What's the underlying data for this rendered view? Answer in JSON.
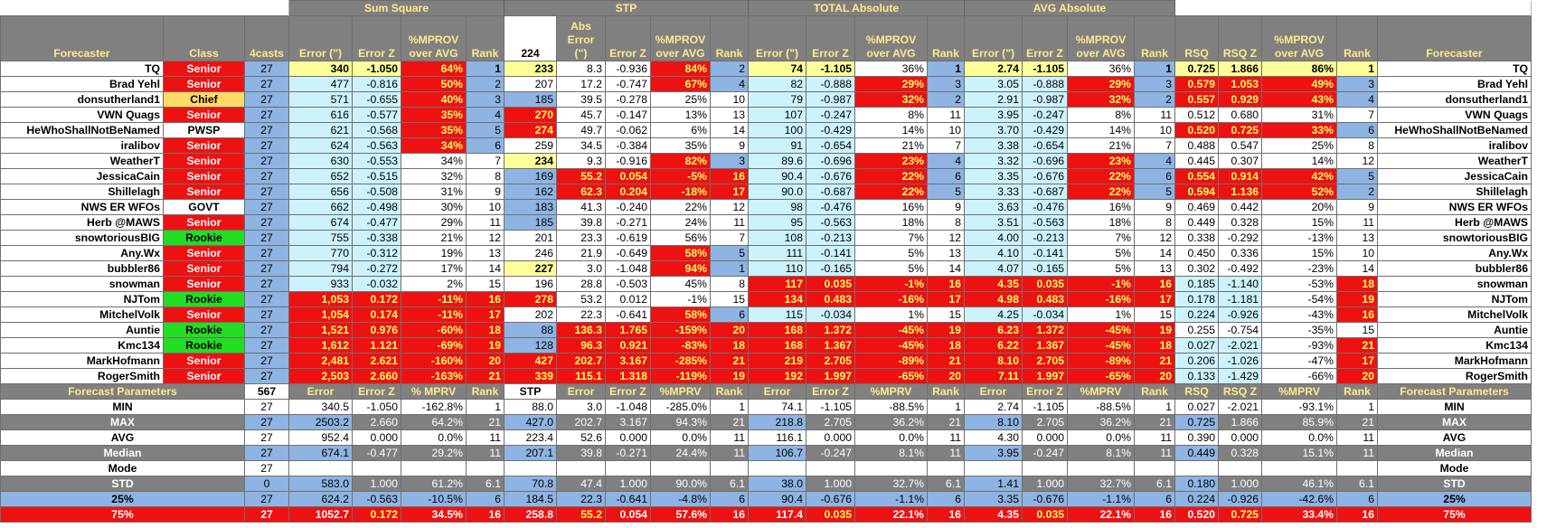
{
  "groups": {
    "sum_square": "Sum Square",
    "stp": "STP",
    "total_abs": "TOTAL Absolute",
    "avg_abs": "AVG Absolute"
  },
  "headers": {
    "forecaster": "Forecaster",
    "class": "Class",
    "casts": "4casts",
    "error_ss": "Error (\")",
    "errz_ss": "Error Z",
    "mprov_ss": "%MPROV over AVG",
    "rank_ss": "Rank",
    "stp_count": "224",
    "abs_error": "Abs Error (\")",
    "errz_stp": "Error Z",
    "mprov_stp": "%MPROV over AVG",
    "rank_stp": "Rank",
    "error_tot": "Error (\")",
    "errz_tot": "Error Z",
    "mprov_tot": "%MPROV over AVG",
    "rank_tot": "Rank",
    "error_avg": "Error (\")",
    "errz_avg": "Error Z",
    "mprov_avg": "%MPROV over AVG",
    "rank_avg": "Rank",
    "rsq": "RSQ",
    "rsqz": "RSQ Z",
    "mprov_rsq": "%MPROV over AVG",
    "rank_rsq": "Rank",
    "forecaster_right": "Forecaster"
  },
  "rows": [
    {
      "name": "TQ",
      "cls": "Senior",
      "n": "27",
      "ss": [
        "340",
        "-1.050",
        "64%",
        "1"
      ],
      "stp": [
        "233",
        "8.3",
        "-0.936",
        "84%",
        "2"
      ],
      "tot": [
        "74",
        "-1.105",
        "36%",
        "1"
      ],
      "avg": [
        "2.74",
        "-1.105",
        "36%",
        "1"
      ],
      "rsq": [
        "0.725",
        "1.866",
        "86%",
        "1"
      ]
    },
    {
      "name": "Brad Yehl",
      "cls": "Senior",
      "n": "27",
      "ss": [
        "477",
        "-0.816",
        "50%",
        "2"
      ],
      "stp": [
        "207",
        "17.2",
        "-0.747",
        "67%",
        "4"
      ],
      "tot": [
        "82",
        "-0.888",
        "29%",
        "3"
      ],
      "avg": [
        "3.05",
        "-0.888",
        "29%",
        "3"
      ],
      "rsq": [
        "0.579",
        "1.053",
        "49%",
        "3"
      ]
    },
    {
      "name": "donsutherland1",
      "cls": "Chief",
      "n": "27",
      "ss": [
        "571",
        "-0.655",
        "40%",
        "3"
      ],
      "stp": [
        "185",
        "39.5",
        "-0.278",
        "25%",
        "10"
      ],
      "tot": [
        "79",
        "-0.987",
        "32%",
        "2"
      ],
      "avg": [
        "2.91",
        "-0.987",
        "32%",
        "2"
      ],
      "rsq": [
        "0.557",
        "0.929",
        "43%",
        "4"
      ]
    },
    {
      "name": "VWN Quags",
      "cls": "Senior",
      "n": "27",
      "ss": [
        "616",
        "-0.577",
        "35%",
        "4"
      ],
      "stp": [
        "270",
        "45.7",
        "-0.147",
        "13%",
        "13"
      ],
      "tot": [
        "107",
        "-0.247",
        "8%",
        "11"
      ],
      "avg": [
        "3.95",
        "-0.247",
        "8%",
        "11"
      ],
      "rsq": [
        "0.512",
        "0.680",
        "31%",
        "7"
      ]
    },
    {
      "name": "HeWhoShallNotBeNamed",
      "cls": "PWSP",
      "n": "27",
      "ss": [
        "621",
        "-0.568",
        "35%",
        "5"
      ],
      "stp": [
        "274",
        "49.7",
        "-0.062",
        "6%",
        "14"
      ],
      "tot": [
        "100",
        "-0.429",
        "14%",
        "10"
      ],
      "avg": [
        "3.70",
        "-0.429",
        "14%",
        "10"
      ],
      "rsq": [
        "0.520",
        "0.725",
        "33%",
        "6"
      ]
    },
    {
      "name": "iralibov",
      "cls": "Senior",
      "n": "27",
      "ss": [
        "624",
        "-0.563",
        "34%",
        "6"
      ],
      "stp": [
        "259",
        "34.5",
        "-0.384",
        "35%",
        "9"
      ],
      "tot": [
        "91",
        "-0.654",
        "21%",
        "7"
      ],
      "avg": [
        "3.38",
        "-0.654",
        "21%",
        "7"
      ],
      "rsq": [
        "0.488",
        "0.547",
        "25%",
        "8"
      ]
    },
    {
      "name": "WeatherT",
      "cls": "Senior",
      "n": "27",
      "ss": [
        "630",
        "-0.553",
        "34%",
        "7"
      ],
      "stp": [
        "234",
        "9.3",
        "-0.916",
        "82%",
        "3"
      ],
      "tot": [
        "89.6",
        "-0.696",
        "23%",
        "4"
      ],
      "avg": [
        "3.32",
        "-0.696",
        "23%",
        "4"
      ],
      "rsq": [
        "0.445",
        "0.307",
        "14%",
        "12"
      ]
    },
    {
      "name": "JessicaCain",
      "cls": "Senior",
      "n": "27",
      "ss": [
        "652",
        "-0.515",
        "32%",
        "8"
      ],
      "stp": [
        "169",
        "55.2",
        "0.054",
        "-5%",
        "16"
      ],
      "tot": [
        "90.4",
        "-0.676",
        "22%",
        "6"
      ],
      "avg": [
        "3.35",
        "-0.676",
        "22%",
        "6"
      ],
      "rsq": [
        "0.554",
        "0.914",
        "42%",
        "5"
      ]
    },
    {
      "name": "Shillelagh",
      "cls": "Senior",
      "n": "27",
      "ss": [
        "656",
        "-0.508",
        "31%",
        "9"
      ],
      "stp": [
        "162",
        "62.3",
        "0.204",
        "-18%",
        "17"
      ],
      "tot": [
        "90.0",
        "-0.687",
        "22%",
        "5"
      ],
      "avg": [
        "3.33",
        "-0.687",
        "22%",
        "5"
      ],
      "rsq": [
        "0.594",
        "1.136",
        "52%",
        "2"
      ]
    },
    {
      "name": "NWS ER WFOs",
      "cls": "GOVT",
      "n": "27",
      "ss": [
        "662",
        "-0.498",
        "30%",
        "10"
      ],
      "stp": [
        "183",
        "41.3",
        "-0.240",
        "22%",
        "12"
      ],
      "tot": [
        "98",
        "-0.476",
        "16%",
        "9"
      ],
      "avg": [
        "3.63",
        "-0.476",
        "16%",
        "9"
      ],
      "rsq": [
        "0.469",
        "0.442",
        "20%",
        "9"
      ]
    },
    {
      "name": "Herb @MAWS",
      "cls": "Senior",
      "n": "27",
      "ss": [
        "674",
        "-0.477",
        "29%",
        "11"
      ],
      "stp": [
        "185",
        "39.8",
        "-0.271",
        "24%",
        "11"
      ],
      "tot": [
        "95",
        "-0.563",
        "18%",
        "8"
      ],
      "avg": [
        "3.51",
        "-0.563",
        "18%",
        "8"
      ],
      "rsq": [
        "0.449",
        "0.328",
        "15%",
        "11"
      ]
    },
    {
      "name": "snowtoriousBIG",
      "cls": "Rookie",
      "n": "27",
      "ss": [
        "755",
        "-0.338",
        "21%",
        "12"
      ],
      "stp": [
        "201",
        "23.3",
        "-0.619",
        "56%",
        "7"
      ],
      "tot": [
        "108",
        "-0.213",
        "7%",
        "12"
      ],
      "avg": [
        "4.00",
        "-0.213",
        "7%",
        "12"
      ],
      "rsq": [
        "0.338",
        "-0.292",
        "-13%",
        "13"
      ]
    },
    {
      "name": "Any.Wx",
      "cls": "Senior",
      "n": "27",
      "ss": [
        "770",
        "-0.312",
        "19%",
        "13"
      ],
      "stp": [
        "246",
        "21.9",
        "-0.649",
        "58%",
        "5"
      ],
      "tot": [
        "111",
        "-0.141",
        "5%",
        "13"
      ],
      "avg": [
        "4.10",
        "-0.141",
        "5%",
        "14"
      ],
      "rsq": [
        "0.450",
        "0.336",
        "15%",
        "10"
      ]
    },
    {
      "name": "bubbler86",
      "cls": "Senior",
      "n": "27",
      "ss": [
        "794",
        "-0.272",
        "17%",
        "14"
      ],
      "stp": [
        "227",
        "3.0",
        "-1.048",
        "94%",
        "1"
      ],
      "tot": [
        "110",
        "-0.165",
        "5%",
        "14"
      ],
      "avg": [
        "4.07",
        "-0.165",
        "5%",
        "13"
      ],
      "rsq": [
        "0.302",
        "-0.492",
        "-23%",
        "14"
      ]
    },
    {
      "name": "snowman",
      "cls": "Senior",
      "n": "27",
      "ss": [
        "933",
        "-0.032",
        "2%",
        "15"
      ],
      "stp": [
        "196",
        "28.8",
        "-0.503",
        "45%",
        "8"
      ],
      "tot": [
        "117",
        "0.035",
        "-1%",
        "16"
      ],
      "avg": [
        "4.35",
        "0.035",
        "-1%",
        "16"
      ],
      "rsq": [
        "0.185",
        "-1.140",
        "-53%",
        "18"
      ]
    },
    {
      "name": "NJTom",
      "cls": "Rookie",
      "n": "27",
      "ss": [
        "1,053",
        "0.172",
        "-11%",
        "16"
      ],
      "stp": [
        "278",
        "53.2",
        "0.012",
        "-1%",
        "15"
      ],
      "tot": [
        "134",
        "0.483",
        "-16%",
        "17"
      ],
      "avg": [
        "4.98",
        "0.483",
        "-16%",
        "17"
      ],
      "rsq": [
        "0.178",
        "-1.181",
        "-54%",
        "19"
      ]
    },
    {
      "name": "MitchelVolk",
      "cls": "Senior",
      "n": "27",
      "ss": [
        "1,054",
        "0.174",
        "-11%",
        "17"
      ],
      "stp": [
        "202",
        "22.3",
        "-0.641",
        "58%",
        "6"
      ],
      "tot": [
        "115",
        "-0.034",
        "1%",
        "15"
      ],
      "avg": [
        "4.25",
        "-0.034",
        "1%",
        "15"
      ],
      "rsq": [
        "0.224",
        "-0.926",
        "-43%",
        "16"
      ]
    },
    {
      "name": "Auntie",
      "cls": "Rookie",
      "n": "27",
      "ss": [
        "1,521",
        "0.976",
        "-60%",
        "18"
      ],
      "stp": [
        "88",
        "136.3",
        "1.765",
        "-159%",
        "20"
      ],
      "tot": [
        "168",
        "1.372",
        "-45%",
        "19"
      ],
      "avg": [
        "6.23",
        "1.372",
        "-45%",
        "19"
      ],
      "rsq": [
        "0.255",
        "-0.754",
        "-35%",
        "15"
      ]
    },
    {
      "name": "Kmc134",
      "cls": "Rookie",
      "n": "27",
      "ss": [
        "1,612",
        "1.121",
        "-69%",
        "19"
      ],
      "stp": [
        "128",
        "96.3",
        "0.921",
        "-83%",
        "18"
      ],
      "tot": [
        "168",
        "1.367",
        "-45%",
        "18"
      ],
      "avg": [
        "6.22",
        "1.367",
        "-45%",
        "18"
      ],
      "rsq": [
        "0.027",
        "-2.021",
        "-93%",
        "21"
      ]
    },
    {
      "name": "MarkHofmann",
      "cls": "Senior",
      "n": "27",
      "ss": [
        "2,481",
        "2.621",
        "-160%",
        "20"
      ],
      "stp": [
        "427",
        "202.7",
        "3.167",
        "-285%",
        "21"
      ],
      "tot": [
        "219",
        "2.705",
        "-89%",
        "21"
      ],
      "avg": [
        "8.10",
        "2.705",
        "-89%",
        "21"
      ],
      "rsq": [
        "0.206",
        "-1.026",
        "-47%",
        "17"
      ]
    },
    {
      "name": "RogerSmith",
      "cls": "Senior",
      "n": "27",
      "ss": [
        "2,503",
        "2.660",
        "-163%",
        "21"
      ],
      "stp": [
        "339",
        "115.1",
        "1.318",
        "-119%",
        "19"
      ],
      "tot": [
        "192",
        "1.997",
        "-65%",
        "20"
      ],
      "avg": [
        "7.11",
        "1.997",
        "-65%",
        "20"
      ],
      "rsq": [
        "0.133",
        "-1.429",
        "-66%",
        "20"
      ]
    }
  ],
  "params_header": {
    "label": "Forecast Parameters",
    "n": "567",
    "c": [
      "Error",
      "Error Z",
      "% MPRV",
      "Rank",
      "STP",
      "Error",
      "Error Z",
      "%MPRV",
      "Rank",
      "Error",
      "Error Z",
      "%MPRV",
      "Rank",
      "Error",
      "Error Z",
      "%MPRV",
      "Rank",
      "RSQ",
      "RSQ Z",
      "%MPRV",
      "Rank"
    ],
    "right": "Forecast Parameters"
  },
  "params": [
    {
      "label": "MIN",
      "n": "27",
      "c": [
        "340.5",
        "-1.050",
        "-162.8%",
        "1",
        "88.0",
        "3.0",
        "-1.048",
        "-285.0%",
        "1",
        "74.1",
        "-1.105",
        "-88.5%",
        "1",
        "2.74",
        "-1.105",
        "-88.5%",
        "1",
        "0.027",
        "-2.021",
        "-93.1%",
        "1"
      ]
    },
    {
      "label": "MAX",
      "n": "27",
      "c": [
        "2503.2",
        "2.660",
        "64.2%",
        "21",
        "427.0",
        "202.7",
        "3.167",
        "94.3%",
        "21",
        "218.8",
        "2.705",
        "36.2%",
        "21",
        "8.10",
        "2.705",
        "36.2%",
        "21",
        "0.725",
        "1.866",
        "85.9%",
        "21"
      ]
    },
    {
      "label": "AVG",
      "n": "27",
      "c": [
        "952.4",
        "0.000",
        "0.0%",
        "11",
        "223.4",
        "52.6",
        "0.000",
        "0.0%",
        "11",
        "116.1",
        "0.000",
        "0.0%",
        "11",
        "4.30",
        "0.000",
        "0.0%",
        "11",
        "0.390",
        "0.000",
        "0.0%",
        "11"
      ]
    },
    {
      "label": "Median",
      "n": "27",
      "c": [
        "674.1",
        "-0.477",
        "29.2%",
        "11",
        "207.1",
        "39.8",
        "-0.271",
        "24.4%",
        "11",
        "106.7",
        "-0.247",
        "8.1%",
        "11",
        "3.95",
        "-0.247",
        "8.1%",
        "11",
        "0.449",
        "0.328",
        "15.1%",
        "11"
      ]
    },
    {
      "label": "Mode",
      "n": "27",
      "c": [
        "",
        "",
        "",
        "",
        "",
        "",
        "",
        "",
        "",
        "",
        "",
        "",
        "",
        "",
        "",
        "",
        "",
        "",
        "",
        "",
        ""
      ]
    },
    {
      "label": "STD",
      "n": "0",
      "c": [
        "583.0",
        "1.000",
        "61.2%",
        "6.1",
        "70.8",
        "47.4",
        "1.000",
        "90.0%",
        "6.1",
        "38.0",
        "1.000",
        "32.7%",
        "6.1",
        "1.41",
        "1.000",
        "32.7%",
        "6.1",
        "0.180",
        "1.000",
        "46.1%",
        "6.1"
      ]
    },
    {
      "label": "25%",
      "n": "27",
      "c": [
        "624.2",
        "-0.563",
        "-10.5%",
        "6",
        "184.5",
        "22.3",
        "-0.641",
        "-4.8%",
        "6",
        "90.4",
        "-0.676",
        "-1.1%",
        "6",
        "3.35",
        "-0.676",
        "-1.1%",
        "6",
        "0.224",
        "-0.926",
        "-42.6%",
        "6"
      ]
    },
    {
      "label": "75%",
      "n": "27",
      "c": [
        "1052.7",
        "0.172",
        "34.5%",
        "16",
        "258.8",
        "55.2",
        "0.054",
        "57.6%",
        "16",
        "117.4",
        "0.035",
        "22.1%",
        "16",
        "4.35",
        "0.035",
        "22.1%",
        "16",
        "0.520",
        "0.725",
        "33.4%",
        "16"
      ]
    }
  ],
  "colors": {
    "senior": "#ee1111",
    "chief": "#ffd966",
    "rookie": "#22dd22",
    "header_gray": "#808080",
    "header_text": "#ffe98c",
    "light_blue": "#ccf2fb",
    "blue": "#8eb4e3",
    "yellow": "#ffff99"
  }
}
